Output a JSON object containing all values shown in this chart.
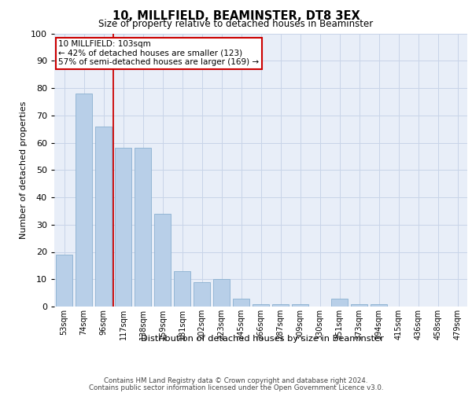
{
  "title1": "10, MILLFIELD, BEAMINSTER, DT8 3EX",
  "title2": "Size of property relative to detached houses in Beaminster",
  "xlabel": "Distribution of detached houses by size in Beaminster",
  "ylabel": "Number of detached properties",
  "categories": [
    "53sqm",
    "74sqm",
    "96sqm",
    "117sqm",
    "138sqm",
    "159sqm",
    "181sqm",
    "202sqm",
    "223sqm",
    "245sqm",
    "266sqm",
    "287sqm",
    "309sqm",
    "330sqm",
    "351sqm",
    "373sqm",
    "394sqm",
    "415sqm",
    "436sqm",
    "458sqm",
    "479sqm"
  ],
  "values": [
    19,
    78,
    66,
    58,
    58,
    34,
    13,
    9,
    10,
    3,
    1,
    1,
    1,
    0,
    3,
    1,
    1,
    0,
    0,
    0,
    0
  ],
  "bar_color": "#b8cfe8",
  "bar_edge_color": "#8ab0d0",
  "vline_x_index": 2,
  "vline_color": "#cc0000",
  "annotation_text": "10 MILLFIELD: 103sqm\n← 42% of detached houses are smaller (123)\n57% of semi-detached houses are larger (169) →",
  "annotation_box_color": "#ffffff",
  "annotation_box_edge": "#cc0000",
  "ylim": [
    0,
    100
  ],
  "yticks": [
    0,
    10,
    20,
    30,
    40,
    50,
    60,
    70,
    80,
    90,
    100
  ],
  "grid_color": "#c8d4e8",
  "bg_color": "#e8eef8",
  "footer1": "Contains HM Land Registry data © Crown copyright and database right 2024.",
  "footer2": "Contains public sector information licensed under the Open Government Licence v3.0."
}
